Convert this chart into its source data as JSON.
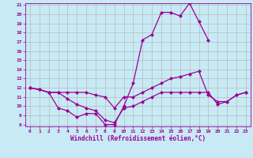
{
  "xlabel": "Windchill (Refroidissement éolien,°C)",
  "x_values": [
    0,
    1,
    2,
    3,
    4,
    5,
    6,
    7,
    8,
    9,
    10,
    11,
    12,
    13,
    14,
    15,
    16,
    17,
    18,
    19,
    20,
    21,
    22,
    23
  ],
  "lines": [
    [
      12.0,
      11.8,
      11.5,
      11.5,
      11.5,
      11.5,
      11.5,
      11.2,
      11.0,
      9.8,
      11.0,
      11.0,
      11.5,
      12.0,
      12.5,
      13.0,
      13.2,
      13.5,
      13.8,
      11.2,
      10.5,
      10.5,
      11.2,
      11.5
    ],
    [
      12.0,
      11.8,
      11.5,
      11.5,
      10.8,
      10.2,
      9.8,
      9.5,
      8.5,
      8.2,
      9.8,
      10.0,
      10.5,
      11.0,
      11.5,
      11.5,
      11.5,
      11.5,
      11.5,
      11.5,
      10.2,
      10.5,
      11.2,
      11.5
    ],
    [
      12.0,
      11.8,
      11.5,
      9.8,
      9.5,
      8.8,
      9.2,
      9.2,
      8.0,
      8.0,
      10.0,
      12.5,
      17.2,
      17.8,
      20.2,
      20.2,
      19.8,
      21.2,
      19.2,
      17.2,
      null,
      null,
      null,
      null
    ]
  ],
  "ylim": [
    8,
    21
  ],
  "xlim": [
    -0.5,
    23.5
  ],
  "yticks": [
    8,
    9,
    10,
    11,
    12,
    13,
    14,
    15,
    16,
    17,
    18,
    19,
    20,
    21
  ],
  "xticks": [
    0,
    1,
    2,
    3,
    4,
    5,
    6,
    7,
    8,
    9,
    10,
    11,
    12,
    13,
    14,
    15,
    16,
    17,
    18,
    19,
    20,
    21,
    22,
    23
  ],
  "line_color": "#990099",
  "bg_color": "#c8eaf4",
  "grid_color": "#b0b0b0",
  "marker": "D",
  "marker_size": 2.0,
  "line_width": 0.9
}
